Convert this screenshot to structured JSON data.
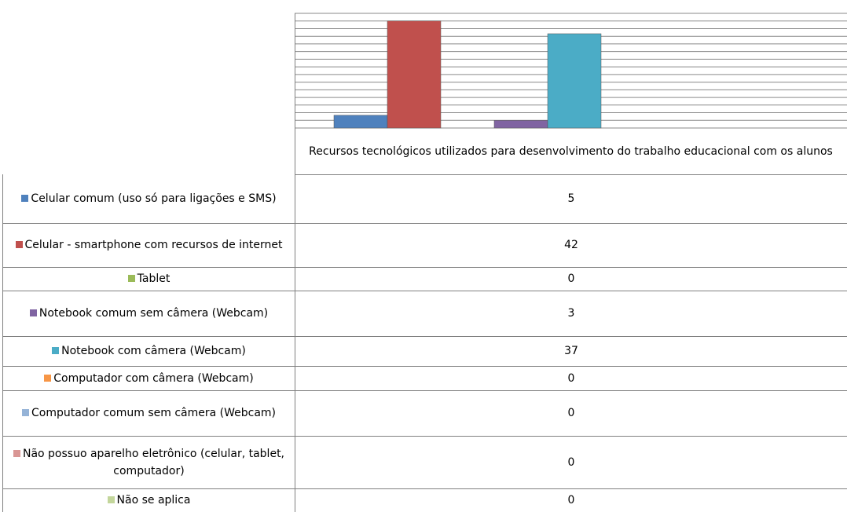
{
  "chart_data": {
    "type": "bar",
    "categories": [
      "Recursos tecnológicos utilizados para desenvolvimento do  trabalho educacional com os alunos"
    ],
    "series": [
      {
        "name": "Celular comum (uso só para ligações e SMS)",
        "color": "#4f81bd",
        "values": [
          5
        ]
      },
      {
        "name": "Celular - smartphone com recursos de internet",
        "color": "#c0504d",
        "values": [
          42
        ]
      },
      {
        "name": "Tablet",
        "color": "#9bbb59",
        "values": [
          0
        ]
      },
      {
        "name": "Notebook comum sem câmera (Webcam)",
        "color": "#8064a2",
        "values": [
          3
        ]
      },
      {
        "name": "Notebook com câmera (Webcam)",
        "color": "#4bacc6",
        "values": [
          37
        ]
      },
      {
        "name": "Computador com câmera (Webcam)",
        "color": "#f79646",
        "values": [
          0
        ]
      },
      {
        "name": "Computador comum sem câmera (Webcam)",
        "color": "#95b3d7",
        "values": [
          0
        ]
      },
      {
        "name": "Não possuo aparelho eletrônico (celular, tablet, computador)",
        "color": "#d99694",
        "values": [
          0
        ]
      },
      {
        "name": "Não se aplica",
        "color": "#c3d69b",
        "values": [
          0
        ]
      }
    ],
    "ylim": [
      0,
      45
    ],
    "yticks": [
      0,
      3,
      6,
      9,
      12,
      15,
      18,
      21,
      24,
      27,
      30,
      33,
      36,
      39,
      42,
      45
    ],
    "grid": true
  }
}
